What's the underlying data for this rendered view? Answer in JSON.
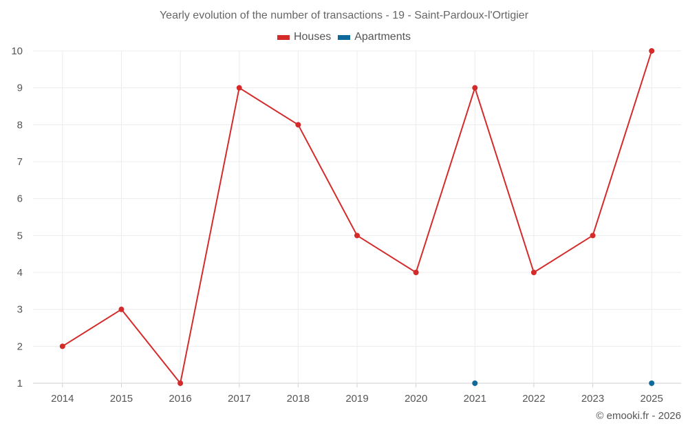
{
  "chart_data": {
    "type": "line",
    "title": "Yearly evolution of the number of transactions - 19 - Saint-Pardoux-l'Ortigier",
    "categories": [
      "2014",
      "2015",
      "2016",
      "2017",
      "2018",
      "2019",
      "2020",
      "2021",
      "2022",
      "2023",
      "2025"
    ],
    "series": [
      {
        "name": "Houses",
        "color": "#d42a2a",
        "values": [
          2,
          3,
          1,
          9,
          8,
          5,
          4,
          9,
          4,
          5,
          10
        ]
      },
      {
        "name": "Apartments",
        "color": "#0f6a9c",
        "values": [
          null,
          null,
          null,
          null,
          null,
          null,
          null,
          1,
          null,
          null,
          1
        ]
      }
    ],
    "ylim": [
      1,
      10
    ],
    "yticks": [
      1,
      2,
      3,
      4,
      5,
      6,
      7,
      8,
      9,
      10
    ],
    "grid": true,
    "legend_position": "top-center"
  },
  "credit": "© emooki.fr - 2026"
}
